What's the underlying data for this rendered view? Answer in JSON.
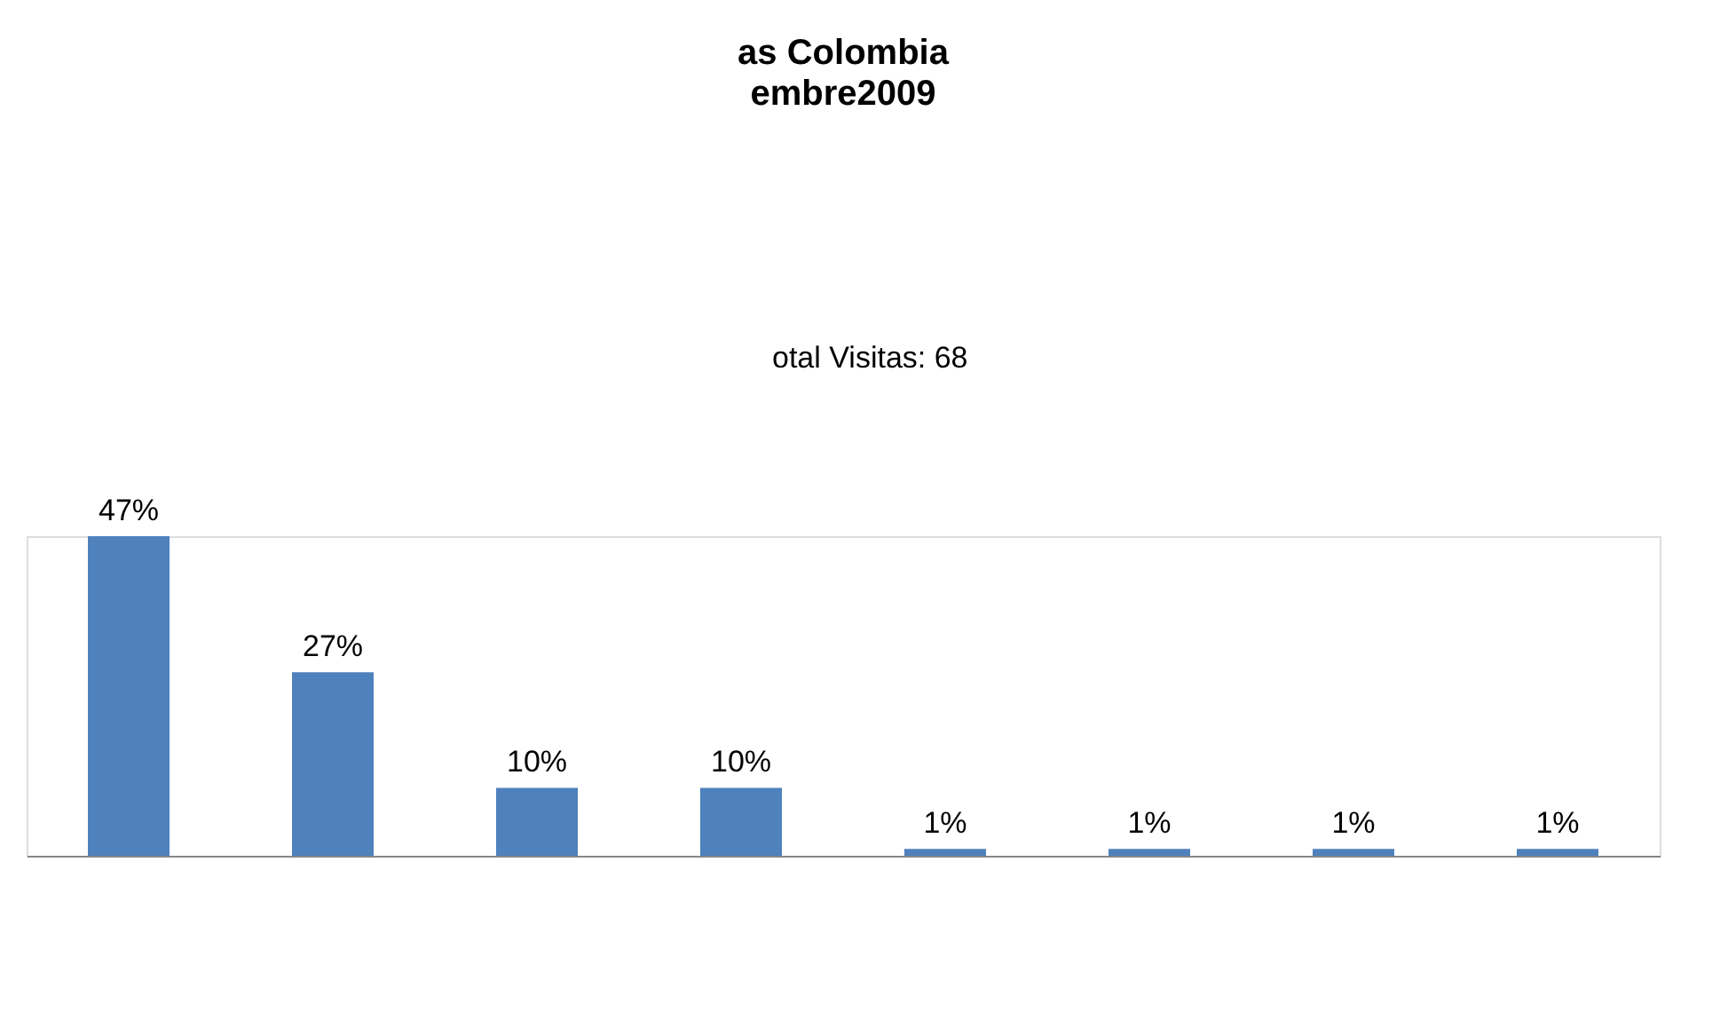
{
  "chart_data": {
    "type": "bar",
    "title": "as Colombia",
    "subtitle": "embre2009",
    "annotations": [
      "otal Visitas: 68"
    ],
    "categories": [
      null,
      null,
      null,
      null,
      null,
      null,
      null,
      null
    ],
    "values": [
      47,
      27,
      10,
      10,
      1,
      1,
      1,
      1
    ],
    "value_labels": [
      "47%",
      "27%",
      "10%",
      "10%",
      "1%",
      "1%",
      "1%",
      "1%"
    ],
    "color": "#4f81bd",
    "grid": false,
    "tick_labels": false
  }
}
